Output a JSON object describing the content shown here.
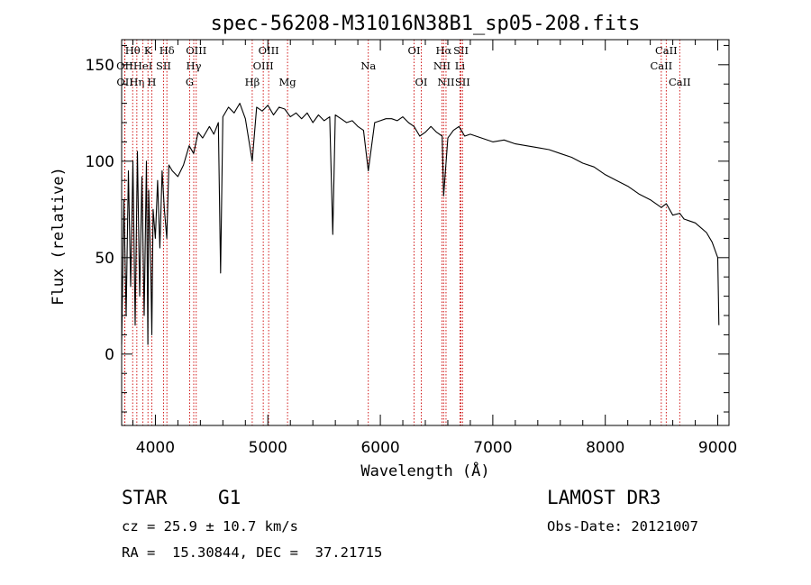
{
  "chart_data": {
    "type": "line",
    "title": "spec-56208-M31016N38B1_sp05-208.fits",
    "xlabel": "Wavelength (Å)",
    "ylabel": "Flux (relative)",
    "xlim": [
      3700,
      9100
    ],
    "ylim": [
      -37,
      163
    ],
    "x_ticks": [
      4000,
      5000,
      6000,
      7000,
      8000,
      9000
    ],
    "x_tick_labels": [
      "4000",
      "5000",
      "6000",
      "7000",
      "8000",
      "9000"
    ],
    "y_ticks": [
      0,
      50,
      100,
      150
    ],
    "y_tick_labels": [
      "0",
      "50",
      "100",
      "150"
    ],
    "series": [
      {
        "name": "flux",
        "x": [
          3700,
          3720,
          3740,
          3760,
          3780,
          3800,
          3820,
          3840,
          3860,
          3880,
          3900,
          3920,
          3933,
          3940,
          3960,
          3968,
          3980,
          4000,
          4020,
          4040,
          4060,
          4080,
          4101,
          4120,
          4150,
          4200,
          4250,
          4300,
          4340,
          4380,
          4420,
          4480,
          4520,
          4560,
          4580,
          4600,
          4650,
          4700,
          4750,
          4800,
          4861,
          4900,
          4950,
          5000,
          5050,
          5100,
          5150,
          5200,
          5250,
          5300,
          5350,
          5400,
          5450,
          5500,
          5550,
          5577,
          5600,
          5650,
          5700,
          5750,
          5800,
          5850,
          5893,
          5950,
          6000,
          6050,
          6100,
          6150,
          6200,
          6250,
          6300,
          6350,
          6400,
          6450,
          6500,
          6550,
          6563,
          6600,
          6650,
          6700,
          6750,
          6800,
          6900,
          7000,
          7100,
          7200,
          7300,
          7400,
          7500,
          7600,
          7700,
          7800,
          7900,
          8000,
          8100,
          8200,
          8300,
          8400,
          8498,
          8542,
          8600,
          8662,
          8700,
          8800,
          8900,
          8950,
          9000,
          9010
        ],
        "y": [
          5,
          80,
          20,
          95,
          35,
          100,
          15,
          105,
          30,
          92,
          20,
          100,
          5,
          85,
          40,
          10,
          75,
          60,
          90,
          55,
          95,
          75,
          60,
          98,
          95,
          92,
          98,
          108,
          104,
          115,
          112,
          118,
          114,
          120,
          42,
          123,
          128,
          125,
          130,
          122,
          100,
          128,
          126,
          129,
          124,
          128,
          127,
          123,
          125,
          122,
          125,
          120,
          124,
          121,
          123,
          62,
          124,
          122,
          120,
          121,
          118,
          116,
          95,
          120,
          121,
          122,
          122,
          121,
          123,
          120,
          118,
          113,
          115,
          118,
          115,
          113,
          82,
          112,
          116,
          118,
          113,
          114,
          112,
          110,
          111,
          109,
          108,
          107,
          106,
          104,
          102,
          99,
          97,
          93,
          90,
          87,
          83,
          80,
          76,
          78,
          72,
          73,
          70,
          68,
          63,
          58,
          50,
          15
        ]
      }
    ],
    "emission_lines": [
      {
        "label": "Hθ",
        "wavelength": 3798,
        "row": 1
      },
      {
        "label": "OII",
        "wavelength": 3727,
        "row": 2
      },
      {
        "label": "OII",
        "wavelength": 3729,
        "row": 3
      },
      {
        "label": "Hη",
        "wavelength": 3835,
        "row": 3
      },
      {
        "label": "HeI",
        "wavelength": 3889,
        "row": 2
      },
      {
        "label": "K",
        "wavelength": 3934,
        "row": 1
      },
      {
        "label": "H",
        "wavelength": 3968,
        "row": 3
      },
      {
        "label": "SII",
        "wavelength": 4072,
        "row": 2
      },
      {
        "label": "Hδ",
        "wavelength": 4102,
        "row": 1
      },
      {
        "label": "OIII",
        "wavelength": 4363,
        "row": 1
      },
      {
        "label": "Hγ",
        "wavelength": 4341,
        "row": 2
      },
      {
        "label": "G",
        "wavelength": 4305,
        "row": 3
      },
      {
        "label": "OIII",
        "wavelength": 5007,
        "row": 1
      },
      {
        "label": "OIII",
        "wavelength": 4959,
        "row": 2
      },
      {
        "label": "Hβ",
        "wavelength": 4861,
        "row": 3
      },
      {
        "label": "Mg",
        "wavelength": 5175,
        "row": 3
      },
      {
        "label": "Na",
        "wavelength": 5893,
        "row": 2
      },
      {
        "label": "OI",
        "wavelength": 6300,
        "row": 1
      },
      {
        "label": "OI",
        "wavelength": 6364,
        "row": 3
      },
      {
        "label": "Hα",
        "wavelength": 6563,
        "row": 1
      },
      {
        "label": "NII",
        "wavelength": 6548,
        "row": 2
      },
      {
        "label": "NII",
        "wavelength": 6584,
        "row": 3
      },
      {
        "label": "SII",
        "wavelength": 6717,
        "row": 1
      },
      {
        "label": "Li",
        "wavelength": 6708,
        "row": 2
      },
      {
        "label": "SII",
        "wavelength": 6731,
        "row": 3
      },
      {
        "label": "CaII",
        "wavelength": 8542,
        "row": 1
      },
      {
        "label": "CaII",
        "wavelength": 8498,
        "row": 2
      },
      {
        "label": "CaII",
        "wavelength": 8662,
        "row": 3
      }
    ],
    "colors": {
      "spectrum": "#000000",
      "line_marker": "#cc0000",
      "axes": "#000000"
    }
  },
  "info": {
    "class": "STAR",
    "subclass": "G1",
    "cz": "cz = 25.9 ± 10.7 km/s",
    "coords": "RA =  15.30844, DEC =  37.21715",
    "survey": "LAMOST DR3",
    "obs_date": "Obs-Date: 20121007"
  }
}
